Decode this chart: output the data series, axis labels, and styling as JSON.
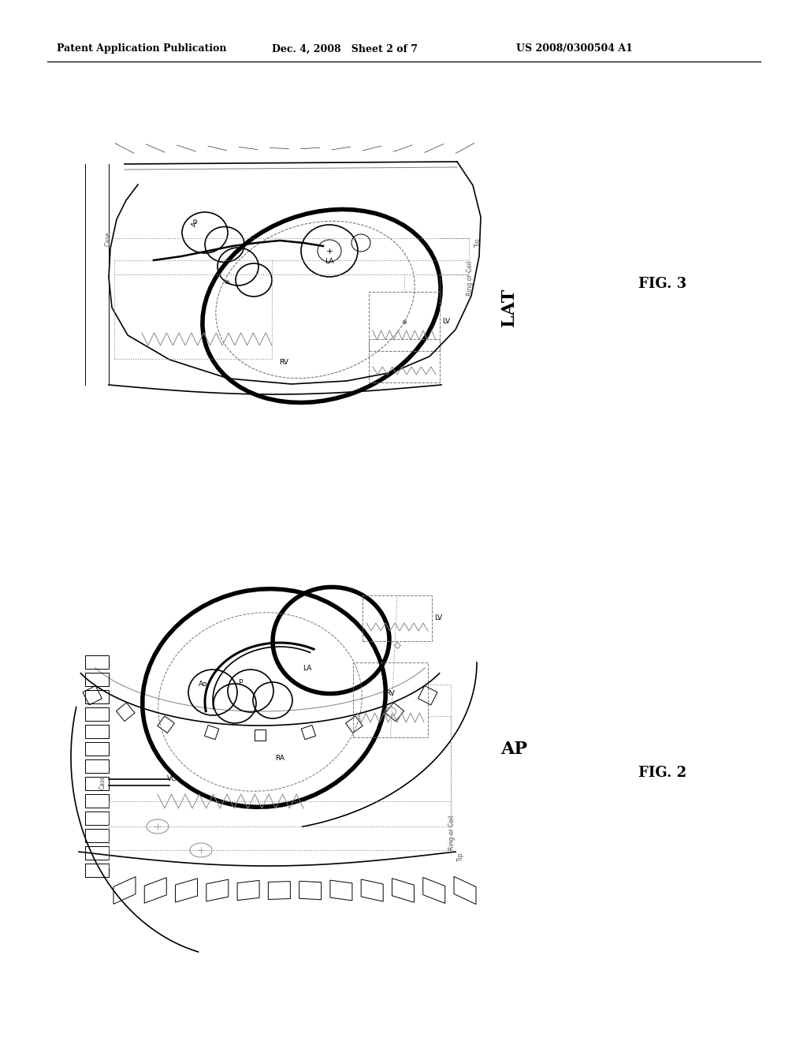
{
  "header_left": "Patent Application Publication",
  "header_mid": "Dec. 4, 2008   Sheet 2 of 7",
  "header_right": "US 2008/0300504 A1",
  "fig2_label": "FIG. 2",
  "fig2_view": "AP",
  "fig3_label": "FIG. 3",
  "fig3_view": "LAT",
  "bg_color": "#ffffff",
  "line_color": "#000000"
}
